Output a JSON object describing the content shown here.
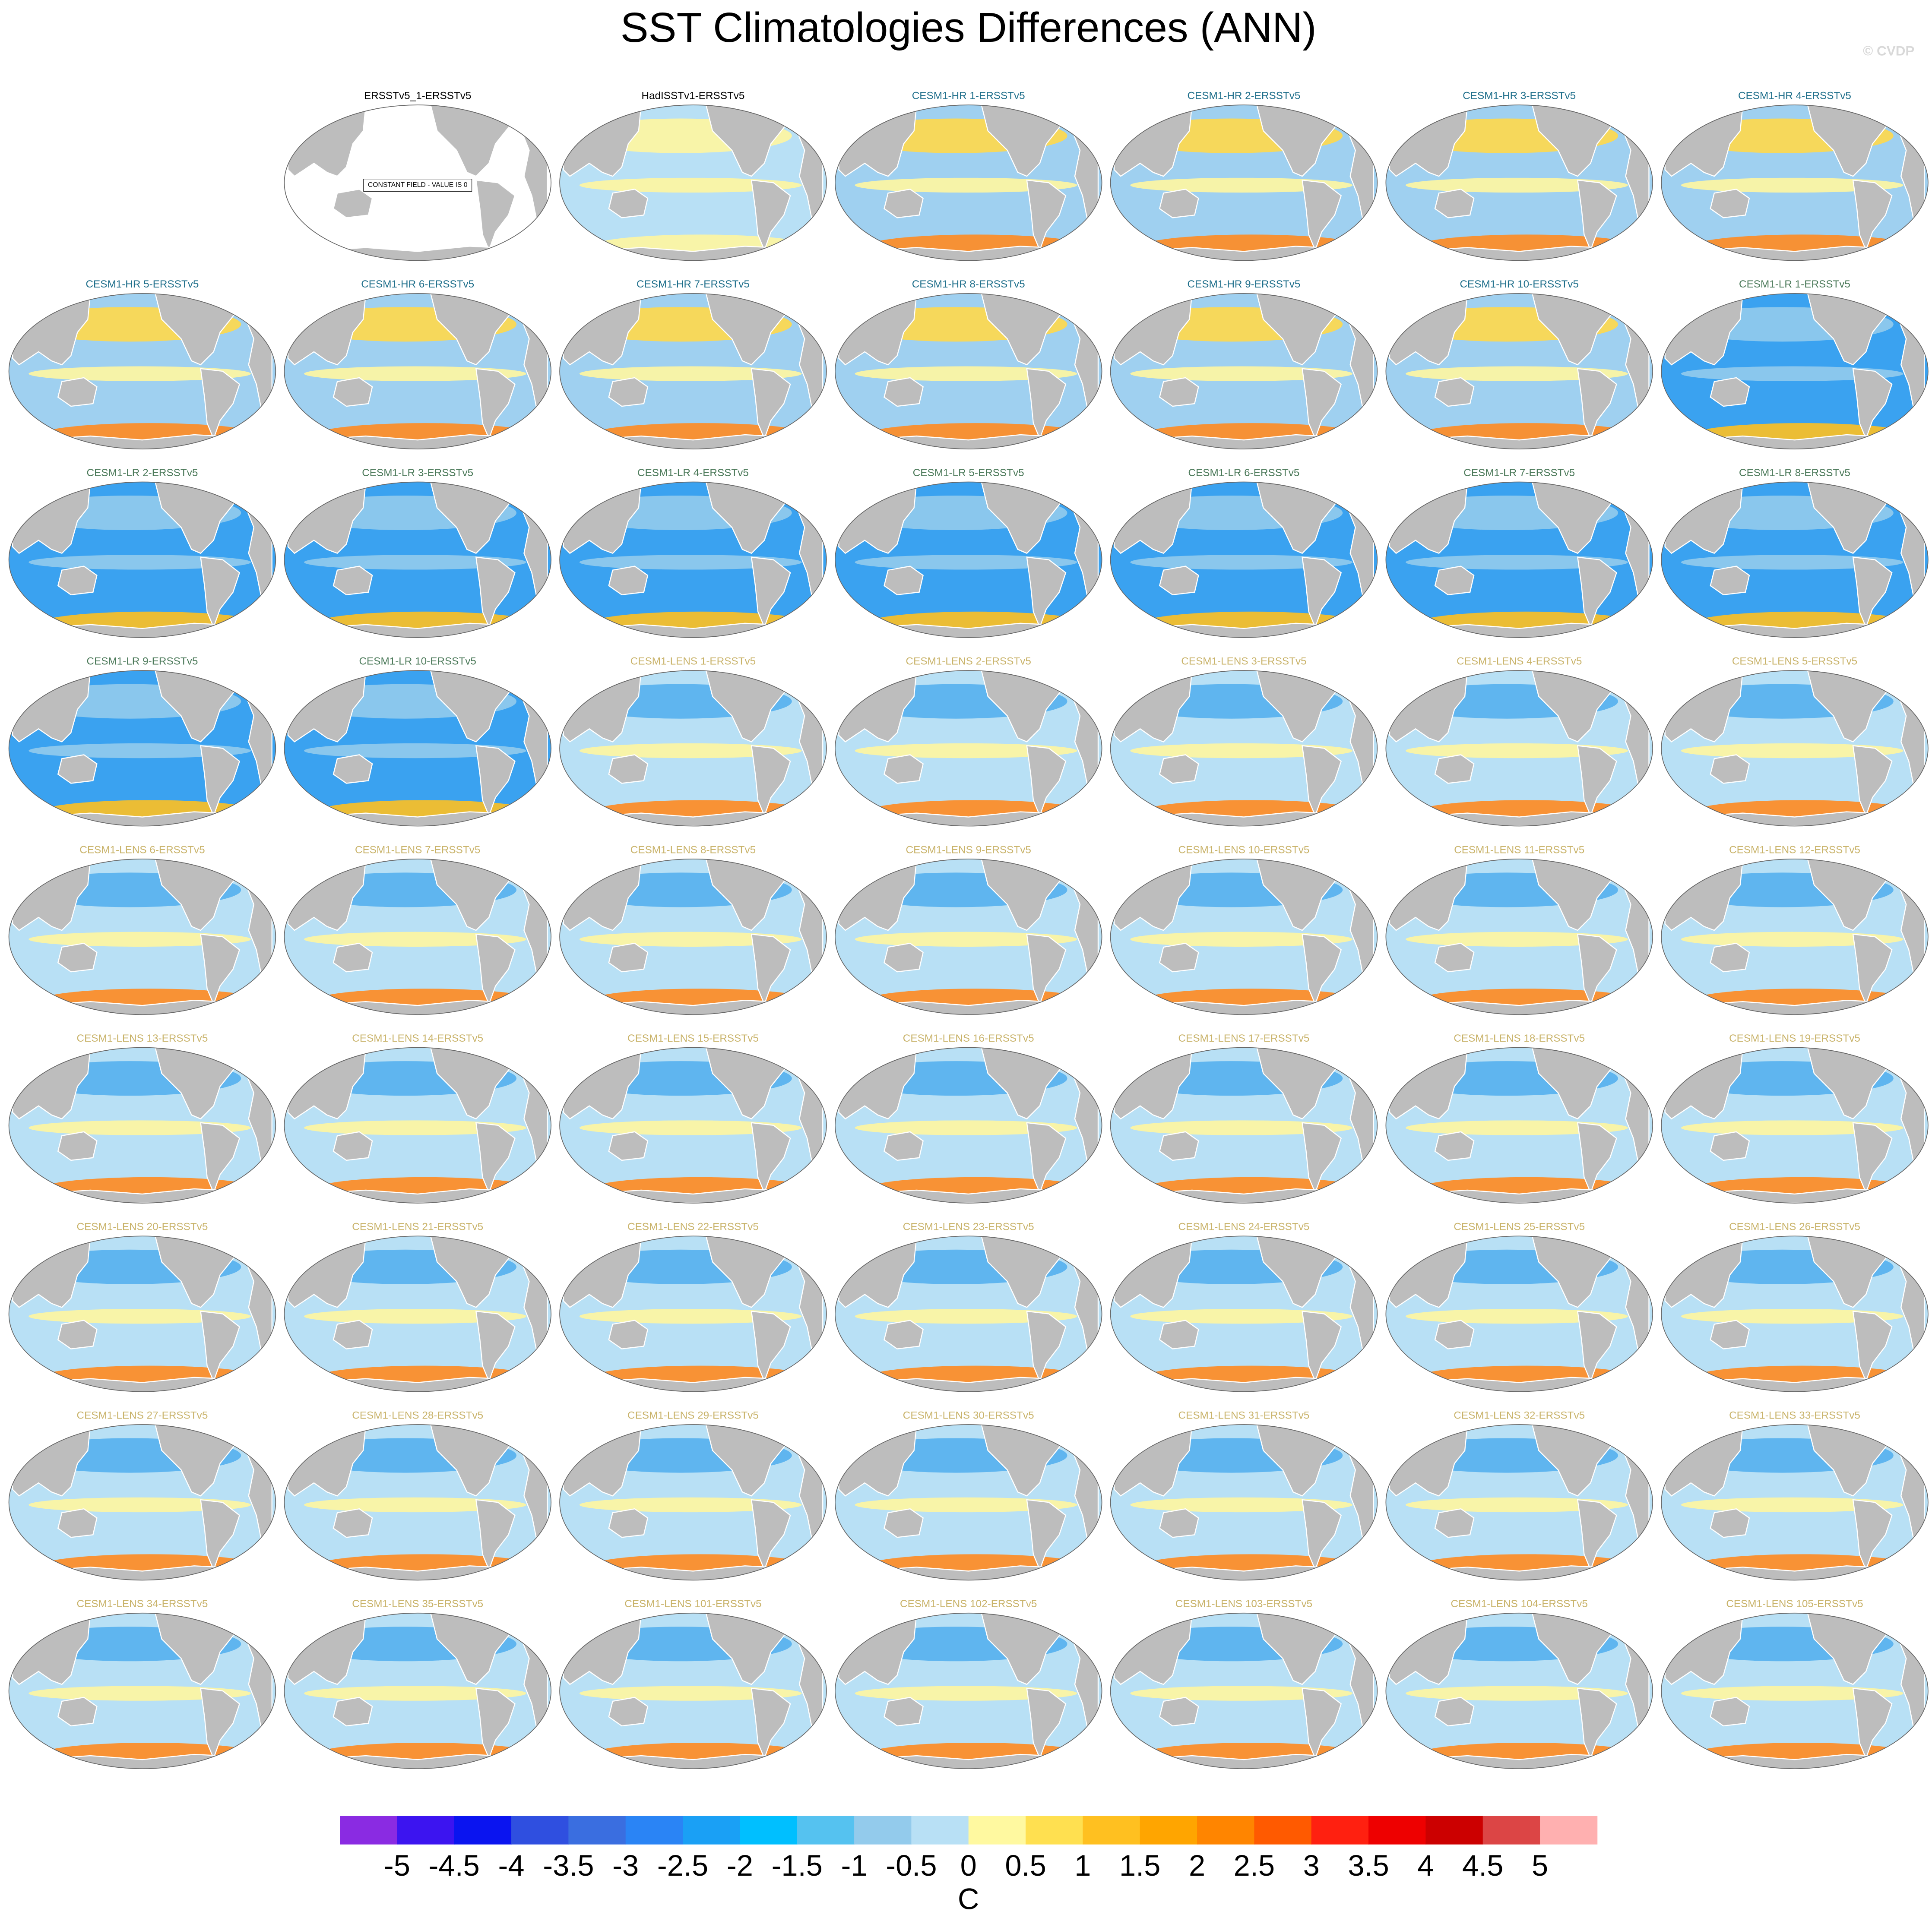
{
  "title": "SST Climatologies Differences (ANN)",
  "watermark": "© CVDP",
  "groups": [
    {
      "title_color": "#000000",
      "ocean_color": "#ffffff",
      "titles": [
        "ERSSTv5_1-ERSSTv5"
      ],
      "annotation": "CONSTANT FIELD - VALUE IS 0"
    },
    {
      "title_color": "#000000",
      "ocean_color": "#b8e0f5",
      "band_colors": [
        "#fff6a0",
        "#fff6a0",
        "#fff6a0"
      ],
      "titles": [
        "HadISSTv1-ERSSTv5"
      ]
    },
    {
      "title_color": "#1f6f8b",
      "ocean_color": "#9fd0f0",
      "band_colors": [
        "#ffd84a",
        "#fff6a0",
        "#ff8a20"
      ],
      "titles": [
        "CESM1-HR 1-ERSSTv5",
        "CESM1-HR 2-ERSSTv5",
        "CESM1-HR 3-ERSSTv5",
        "CESM1-HR 4-ERSSTv5",
        "CESM1-HR 5-ERSSTv5",
        "CESM1-HR 6-ERSSTv5",
        "CESM1-HR 7-ERSSTv5",
        "CESM1-HR 8-ERSSTv5",
        "CESM1-HR 9-ERSSTv5",
        "CESM1-HR 10-ERSSTv5"
      ]
    },
    {
      "title_color": "#4c7a5a",
      "ocean_color": "#3aa2f0",
      "band_colors": [
        "#93cbec",
        "#93cbec",
        "#ffc020"
      ],
      "titles": [
        "CESM1-LR 1-ERSSTv5",
        "CESM1-LR 2-ERSSTv5",
        "CESM1-LR 3-ERSSTv5",
        "CESM1-LR 4-ERSSTv5",
        "CESM1-LR 5-ERSSTv5",
        "CESM1-LR 6-ERSSTv5",
        "CESM1-LR 7-ERSSTv5",
        "CESM1-LR 8-ERSSTv5",
        "CESM1-LR 9-ERSSTv5",
        "CESM1-LR 10-ERSSTv5"
      ]
    },
    {
      "title_color": "#c9b36a",
      "ocean_color": "#b8e0f5",
      "band_colors": [
        "#55b0ee",
        "#fff6a0",
        "#ff8a20"
      ],
      "titles": [
        "CESM1-LENS 1-ERSSTv5",
        "CESM1-LENS 2-ERSSTv5",
        "CESM1-LENS 3-ERSSTv5",
        "CESM1-LENS 4-ERSSTv5",
        "CESM1-LENS 5-ERSSTv5",
        "CESM1-LENS 6-ERSSTv5",
        "CESM1-LENS 7-ERSSTv5",
        "CESM1-LENS 8-ERSSTv5",
        "CESM1-LENS 9-ERSSTv5",
        "CESM1-LENS 10-ERSSTv5",
        "CESM1-LENS 11-ERSSTv5",
        "CESM1-LENS 12-ERSSTv5",
        "CESM1-LENS 13-ERSSTv5",
        "CESM1-LENS 14-ERSSTv5",
        "CESM1-LENS 15-ERSSTv5",
        "CESM1-LENS 16-ERSSTv5",
        "CESM1-LENS 17-ERSSTv5",
        "CESM1-LENS 18-ERSSTv5",
        "CESM1-LENS 19-ERSSTv5",
        "CESM1-LENS 20-ERSSTv5",
        "CESM1-LENS 21-ERSSTv5",
        "CESM1-LENS 22-ERSSTv5",
        "CESM1-LENS 23-ERSSTv5",
        "CESM1-LENS 24-ERSSTv5",
        "CESM1-LENS 25-ERSSTv5",
        "CESM1-LENS 26-ERSSTv5",
        "CESM1-LENS 27-ERSSTv5",
        "CESM1-LENS 28-ERSSTv5",
        "CESM1-LENS 29-ERSSTv5",
        "CESM1-LENS 30-ERSSTv5",
        "CESM1-LENS 31-ERSSTv5",
        "CESM1-LENS 32-ERSSTv5",
        "CESM1-LENS 33-ERSSTv5",
        "CESM1-LENS 34-ERSSTv5",
        "CESM1-LENS 35-ERSSTv5",
        "CESM1-LENS 101-ERSSTv5",
        "CESM1-LENS 102-ERSSTv5",
        "CESM1-LENS 103-ERSSTv5",
        "CESM1-LENS 104-ERSSTv5",
        "CESM1-LENS 105-ERSSTv5"
      ]
    }
  ],
  "colorbar": {
    "colors": [
      "#8a2be2",
      "#3c14f0",
      "#0a14f0",
      "#2f4fe0",
      "#3a6ee0",
      "#2a84f5",
      "#1aa0f5",
      "#00bfff",
      "#55c2f0",
      "#93cbec",
      "#b8e0f5",
      "#fff9a0",
      "#ffe050",
      "#ffc020",
      "#ffa500",
      "#ff8500",
      "#ff5a00",
      "#ff2010",
      "#ee0000",
      "#cc0000",
      "#dc4545",
      "#ffb0b0"
    ],
    "labels": [
      -5,
      -4.5,
      -4,
      -3.5,
      -3,
      -2.5,
      -2,
      -1.5,
      -1,
      -0.5,
      0,
      0.5,
      1,
      1.5,
      2,
      2.5,
      3,
      3.5,
      4,
      4.5,
      5
    ],
    "unit": "C"
  }
}
